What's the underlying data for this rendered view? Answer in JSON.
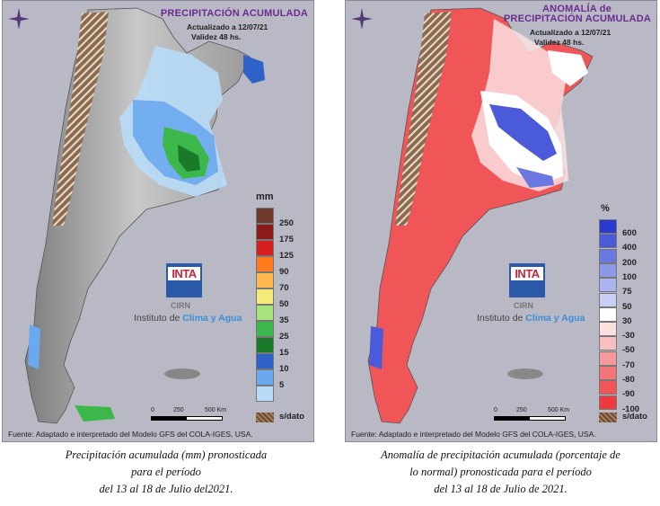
{
  "left_panel": {
    "title": "PRECIPITACIÓN ACUMULADA",
    "updated": "Actualizado a 12/07/21",
    "validity": "Validez 48 hs.",
    "legend_unit": "mm",
    "legend": [
      {
        "label": "250",
        "color": "#6b3a2a"
      },
      {
        "label": "175",
        "color": "#8b1a1a"
      },
      {
        "label": "125",
        "color": "#d81f1f"
      },
      {
        "label": "90",
        "color": "#ff7a1a"
      },
      {
        "label": "70",
        "color": "#ffb84d"
      },
      {
        "label": "50",
        "color": "#f5e97a"
      },
      {
        "label": "35",
        "color": "#a8e27a"
      },
      {
        "label": "25",
        "color": "#3cb84a"
      },
      {
        "label": "15",
        "color": "#1a7a2a"
      },
      {
        "label": "10",
        "color": "#2f62c8"
      },
      {
        "label": "5",
        "color": "#6aa8f0"
      },
      {
        "label": "",
        "color": "#b8dcf8"
      }
    ],
    "sdato_label": "s/dato",
    "logo_text": "INTA",
    "cirn": "CIRN",
    "instituto_prefix": "Instituto de ",
    "instituto_brand": "Clima y Agua",
    "scale_0": "0",
    "scale_250": "250",
    "scale_500": "500 Km",
    "fuente": "Fuente: Adaptado e interpretado del Modelo GFS del COLA-IGES, USA.",
    "caption_line1": "Precipitación acumulada (mm) pronosticada",
    "caption_line2": "para el período",
    "caption_line3": "del 13 al 18 de Julio del2021."
  },
  "right_panel": {
    "title_line1": "ANOMALÍA de",
    "title_line2": "PRECIPITACIÓN ACUMULADA",
    "updated": "Actualizado a 12/07/21",
    "validity": "Validez 48 hs.",
    "legend_unit": "%",
    "legend": [
      {
        "label": "600",
        "color": "#2a3ad0"
      },
      {
        "label": "400",
        "color": "#4a5ad8"
      },
      {
        "label": "200",
        "color": "#6a78e0"
      },
      {
        "label": "100",
        "color": "#8c98e8"
      },
      {
        "label": "75",
        "color": "#aab4ef"
      },
      {
        "label": "50",
        "color": "#c8cff5"
      },
      {
        "label": "30",
        "color": "#ffffff"
      },
      {
        "label": "-30",
        "color": "#fbe0e0"
      },
      {
        "label": "-50",
        "color": "#f8bfc0"
      },
      {
        "label": "-70",
        "color": "#f59a9c"
      },
      {
        "label": "-80",
        "color": "#f27577"
      },
      {
        "label": "-90",
        "color": "#f05558"
      },
      {
        "label": "-100",
        "color": "#ee3a3e"
      }
    ],
    "sdato_label": "s/dato",
    "logo_text": "INTA",
    "cirn": "CIRN",
    "instituto_prefix": "Instituto de ",
    "instituto_brand": "Clima y Agua",
    "scale_0": "0",
    "scale_250": "250",
    "scale_500": "500 Km",
    "fuente": "Fuente: Adaptado e interpretado del Modelo GFS del COLA-IGES, USA.",
    "caption_line1": "Anomalía de precipitación acumulada (porcentaje de",
    "caption_line2": "lo normal) pronosticada para el período",
    "caption_line3": "del 13 al 18 de Julio de 2021."
  }
}
